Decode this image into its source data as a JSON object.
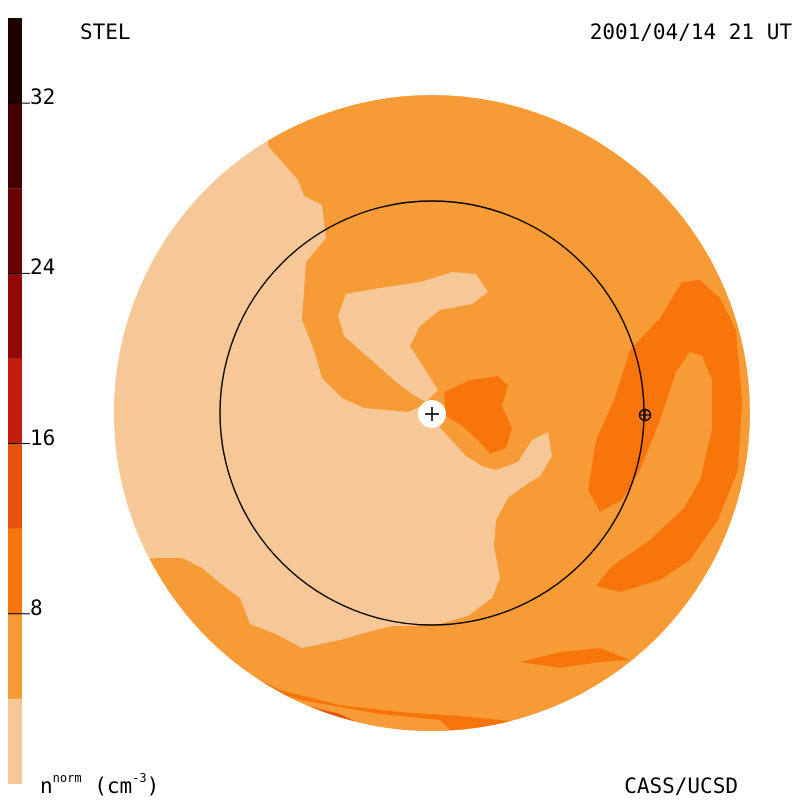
{
  "header": {
    "observatory": "STEL",
    "timestamp": "2001/04/14 21 UT"
  },
  "footer": {
    "unit_base": "n",
    "unit_sup": "norm",
    "unit_paren": "(cm",
    "unit_exp": "-3",
    "unit_close": ")",
    "credit": "CASS/UCSD"
  },
  "colorbar": {
    "ticks": [
      "8",
      "16",
      "24",
      "32"
    ],
    "tick_values": [
      8,
      16,
      24,
      32
    ],
    "range": [
      0,
      36
    ],
    "bands": [
      {
        "from": 0,
        "to": 4,
        "color": "#f7c897"
      },
      {
        "from": 4,
        "to": 8,
        "color": "#f69b35"
      },
      {
        "from": 8,
        "to": 12,
        "color": "#f7750b"
      },
      {
        "from": 12,
        "to": 16,
        "color": "#e4520c"
      },
      {
        "from": 16,
        "to": 20,
        "color": "#c21e0b"
      },
      {
        "from": 20,
        "to": 24,
        "color": "#940707"
      },
      {
        "from": 24,
        "to": 28,
        "color": "#6a0404"
      },
      {
        "from": 28,
        "to": 32,
        "color": "#430202"
      },
      {
        "from": 32,
        "to": 36,
        "color": "#1f0101"
      }
    ]
  },
  "map": {
    "markers": [
      "sun-marker",
      "earth-marker"
    ]
  }
}
